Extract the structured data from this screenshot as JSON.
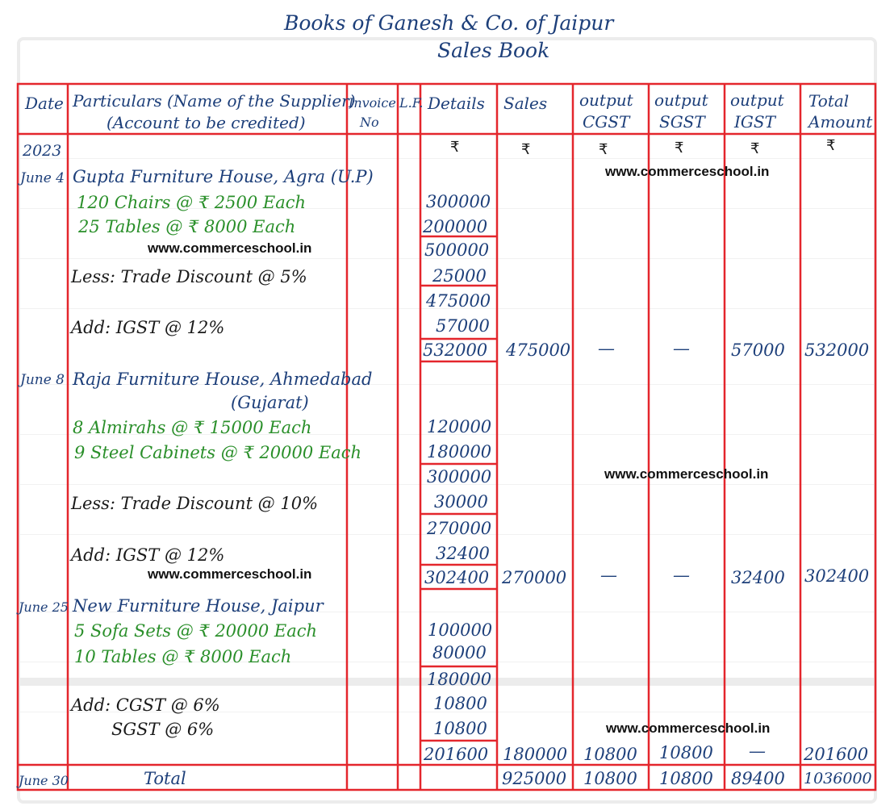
{
  "title": {
    "line1": "Books of Ganesh & Co. of Jaipur",
    "line2": "Sales Book"
  },
  "headers": {
    "date": "Date",
    "particulars": "Particulars (Name of the Supplier)",
    "particulars_sub": "(Account to be credited)",
    "invoice_1": "Invoice",
    "invoice_2": "No",
    "lf": "L.F.",
    "details": "Details",
    "sales": "Sales",
    "cgst_1": "output",
    "cgst_2": "CGST",
    "sgst_1": "output",
    "sgst_2": "SGST",
    "igst_1": "output",
    "igst_2": "IGST",
    "total_1": "Total",
    "total_2": "Amount"
  },
  "currency": "₹",
  "year": "2023",
  "watermark": "www.commerceschool.in",
  "entries": [
    {
      "date": "June 4",
      "party": "Gupta Furniture House, Agra (U.P)",
      "item1": "120 Chairs @ ₹ 2500 Each",
      "item1_amt": "300000",
      "item2": "25 Tables @ ₹ 8000 Each",
      "item2_amt": "200000",
      "subtotal": "500000",
      "adj1_label": "Less: Trade Discount @ 5%",
      "adj1_amt": "25000",
      "net": "475000",
      "adj2_label": "Add: IGST @ 12%",
      "adj2_amt": "57000",
      "total": "532000",
      "sales": "475000",
      "cgst": "—",
      "sgst": "—",
      "igst": "57000",
      "amount": "532000"
    },
    {
      "date": "June 8",
      "party": "Raja Furniture House, Ahmedabad",
      "party2": "(Gujarat)",
      "item1": "8 Almirahs @ ₹ 15000 Each",
      "item1_amt": "120000",
      "item2": "9 Steel Cabinets @ ₹ 20000 Each",
      "item2_amt": "180000",
      "subtotal": "300000",
      "adj1_label": "Less: Trade Discount @ 10%",
      "adj1_amt": "30000",
      "net": "270000",
      "adj2_label": "Add: IGST @ 12%",
      "adj2_amt": "32400",
      "total": "302400",
      "sales": "270000",
      "cgst": "—",
      "sgst": "—",
      "igst": "32400",
      "amount": "302400"
    },
    {
      "date": "June 25",
      "party": "New Furniture House, Jaipur",
      "item1": "5 Sofa Sets @ ₹ 20000 Each",
      "item1_amt": "100000",
      "item2": "10 Tables @ ₹ 8000 Each",
      "item2_amt": "80000",
      "subtotal": "180000",
      "adj1_label": "Add: CGST @ 6%",
      "adj1_amt": "10800",
      "adj2_label": "SGST @ 6%",
      "adj2_amt": "10800",
      "total": "201600",
      "sales": "180000",
      "cgst": "10800",
      "sgst": "10800",
      "igst": "—",
      "amount": "201600"
    }
  ],
  "total_row": {
    "date": "June 30",
    "label": "Total",
    "sales": "925000",
    "cgst": "10800",
    "sgst": "10800",
    "igst": "89400",
    "amount": "1036000"
  }
}
